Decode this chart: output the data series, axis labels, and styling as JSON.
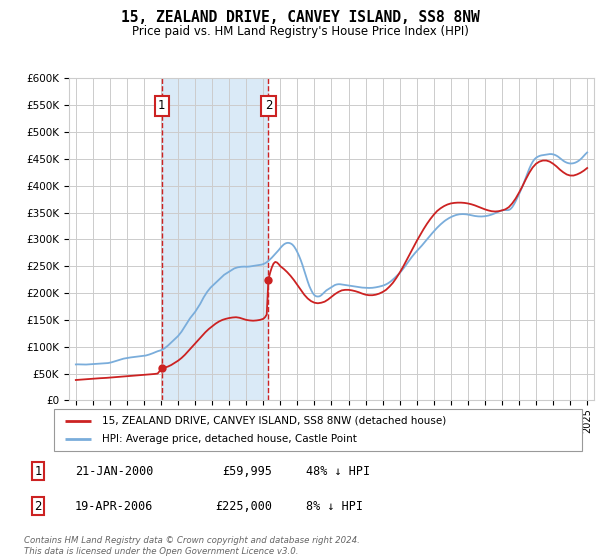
{
  "title": "15, ZEALAND DRIVE, CANVEY ISLAND, SS8 8NW",
  "subtitle": "Price paid vs. HM Land Registry's House Price Index (HPI)",
  "legend_line1": "15, ZEALAND DRIVE, CANVEY ISLAND, SS8 8NW (detached house)",
  "legend_line2": "HPI: Average price, detached house, Castle Point",
  "sale1_date": "21-JAN-2000",
  "sale1_price": "£59,995",
  "sale1_hpi": "48% ↓ HPI",
  "sale1_year": 2000.05,
  "sale1_value": 59995,
  "sale2_date": "19-APR-2006",
  "sale2_price": "£225,000",
  "sale2_hpi": "8% ↓ HPI",
  "sale2_year": 2006.3,
  "sale2_value": 225000,
  "hpi_color": "#7aaddb",
  "price_color": "#cc2222",
  "annotation_box_color": "#cc2222",
  "shaded_region_color": "#daeaf7",
  "grid_color": "#cccccc",
  "background_color": "#ffffff",
  "ylim": [
    0,
    600000
  ],
  "xlim_start": 1994.6,
  "xlim_end": 2025.4,
  "ytick_step": 50000,
  "footer": "Contains HM Land Registry data © Crown copyright and database right 2024.\nThis data is licensed under the Open Government Licence v3.0.",
  "hpi_data": [
    [
      1995.0,
      67000
    ],
    [
      1995.1,
      67200
    ],
    [
      1995.2,
      67100
    ],
    [
      1995.3,
      66900
    ],
    [
      1995.4,
      66700
    ],
    [
      1995.5,
      66600
    ],
    [
      1995.6,
      66800
    ],
    [
      1995.7,
      67000
    ],
    [
      1995.8,
      67200
    ],
    [
      1995.9,
      67400
    ],
    [
      1996.0,
      67500
    ],
    [
      1996.1,
      67600
    ],
    [
      1996.2,
      67800
    ],
    [
      1996.3,
      68000
    ],
    [
      1996.4,
      68200
    ],
    [
      1996.5,
      68400
    ],
    [
      1996.6,
      68600
    ],
    [
      1996.7,
      68900
    ],
    [
      1996.8,
      69200
    ],
    [
      1996.9,
      69600
    ],
    [
      1997.0,
      70200
    ],
    [
      1997.1,
      71000
    ],
    [
      1997.2,
      72000
    ],
    [
      1997.3,
      73100
    ],
    [
      1997.4,
      74200
    ],
    [
      1997.5,
      75200
    ],
    [
      1997.6,
      76100
    ],
    [
      1997.7,
      77000
    ],
    [
      1997.8,
      77800
    ],
    [
      1997.9,
      78400
    ],
    [
      1998.0,
      79000
    ],
    [
      1998.1,
      79500
    ],
    [
      1998.2,
      80000
    ],
    [
      1998.3,
      80400
    ],
    [
      1998.4,
      80800
    ],
    [
      1998.5,
      81200
    ],
    [
      1998.6,
      81600
    ],
    [
      1998.7,
      82000
    ],
    [
      1998.8,
      82300
    ],
    [
      1998.9,
      82600
    ],
    [
      1999.0,
      83000
    ],
    [
      1999.1,
      83600
    ],
    [
      1999.2,
      84400
    ],
    [
      1999.3,
      85400
    ],
    [
      1999.4,
      86500
    ],
    [
      1999.5,
      87700
    ],
    [
      1999.6,
      89000
    ],
    [
      1999.7,
      90300
    ],
    [
      1999.8,
      91600
    ],
    [
      1999.9,
      92500
    ],
    [
      2000.0,
      93500
    ],
    [
      2000.1,
      95000
    ],
    [
      2000.2,
      97000
    ],
    [
      2000.3,
      99500
    ],
    [
      2000.4,
      102000
    ],
    [
      2000.5,
      105000
    ],
    [
      2000.6,
      108000
    ],
    [
      2000.7,
      111000
    ],
    [
      2000.8,
      114000
    ],
    [
      2000.9,
      117000
    ],
    [
      2001.0,
      120000
    ],
    [
      2001.1,
      124000
    ],
    [
      2001.2,
      128000
    ],
    [
      2001.3,
      133000
    ],
    [
      2001.4,
      138000
    ],
    [
      2001.5,
      143000
    ],
    [
      2001.6,
      148000
    ],
    [
      2001.7,
      153000
    ],
    [
      2001.8,
      157000
    ],
    [
      2001.9,
      161000
    ],
    [
      2002.0,
      165000
    ],
    [
      2002.1,
      170000
    ],
    [
      2002.2,
      175000
    ],
    [
      2002.3,
      180000
    ],
    [
      2002.4,
      186000
    ],
    [
      2002.5,
      192000
    ],
    [
      2002.6,
      197000
    ],
    [
      2002.7,
      202000
    ],
    [
      2002.8,
      206000
    ],
    [
      2002.9,
      210000
    ],
    [
      2003.0,
      213000
    ],
    [
      2003.1,
      216000
    ],
    [
      2003.2,
      219000
    ],
    [
      2003.3,
      222000
    ],
    [
      2003.4,
      225000
    ],
    [
      2003.5,
      228000
    ],
    [
      2003.6,
      231000
    ],
    [
      2003.7,
      234000
    ],
    [
      2003.8,
      236000
    ],
    [
      2003.9,
      238000
    ],
    [
      2004.0,
      240000
    ],
    [
      2004.1,
      242000
    ],
    [
      2004.2,
      244000
    ],
    [
      2004.3,
      246000
    ],
    [
      2004.4,
      247000
    ],
    [
      2004.5,
      248000
    ],
    [
      2004.6,
      248500
    ],
    [
      2004.7,
      249000
    ],
    [
      2004.8,
      249200
    ],
    [
      2004.9,
      249300
    ],
    [
      2005.0,
      249000
    ],
    [
      2005.1,
      249200
    ],
    [
      2005.2,
      249500
    ],
    [
      2005.3,
      250000
    ],
    [
      2005.4,
      250500
    ],
    [
      2005.5,
      251000
    ],
    [
      2005.6,
      251500
    ],
    [
      2005.7,
      252000
    ],
    [
      2005.8,
      252500
    ],
    [
      2005.9,
      253000
    ],
    [
      2006.0,
      254000
    ],
    [
      2006.1,
      255500
    ],
    [
      2006.2,
      257500
    ],
    [
      2006.3,
      260000
    ],
    [
      2006.4,
      263000
    ],
    [
      2006.5,
      266000
    ],
    [
      2006.6,
      269500
    ],
    [
      2006.7,
      273000
    ],
    [
      2006.8,
      276500
    ],
    [
      2006.9,
      280000
    ],
    [
      2007.0,
      284000
    ],
    [
      2007.1,
      287500
    ],
    [
      2007.2,
      290500
    ],
    [
      2007.3,
      292500
    ],
    [
      2007.4,
      293500
    ],
    [
      2007.5,
      293500
    ],
    [
      2007.6,
      292500
    ],
    [
      2007.7,
      290500
    ],
    [
      2007.8,
      287000
    ],
    [
      2007.9,
      282000
    ],
    [
      2008.0,
      276000
    ],
    [
      2008.1,
      269000
    ],
    [
      2008.2,
      261000
    ],
    [
      2008.3,
      252000
    ],
    [
      2008.4,
      242000
    ],
    [
      2008.5,
      232000
    ],
    [
      2008.6,
      222000
    ],
    [
      2008.7,
      213000
    ],
    [
      2008.8,
      206000
    ],
    [
      2008.9,
      200000
    ],
    [
      2009.0,
      196000
    ],
    [
      2009.1,
      194000
    ],
    [
      2009.2,
      193500
    ],
    [
      2009.3,
      194000
    ],
    [
      2009.4,
      196000
    ],
    [
      2009.5,
      199000
    ],
    [
      2009.6,
      202000
    ],
    [
      2009.7,
      205000
    ],
    [
      2009.8,
      207000
    ],
    [
      2009.9,
      209000
    ],
    [
      2010.0,
      211000
    ],
    [
      2010.1,
      213000
    ],
    [
      2010.2,
      215000
    ],
    [
      2010.3,
      216000
    ],
    [
      2010.4,
      216500
    ],
    [
      2010.5,
      216500
    ],
    [
      2010.6,
      216000
    ],
    [
      2010.7,
      215500
    ],
    [
      2010.8,
      215000
    ],
    [
      2010.9,
      214500
    ],
    [
      2011.0,
      214000
    ],
    [
      2011.1,
      213500
    ],
    [
      2011.2,
      213000
    ],
    [
      2011.3,
      212500
    ],
    [
      2011.4,
      212000
    ],
    [
      2011.5,
      211500
    ],
    [
      2011.6,
      211000
    ],
    [
      2011.7,
      210500
    ],
    [
      2011.8,
      210200
    ],
    [
      2011.9,
      210000
    ],
    [
      2012.0,
      209800
    ],
    [
      2012.1,
      209600
    ],
    [
      2012.2,
      209500
    ],
    [
      2012.3,
      209600
    ],
    [
      2012.4,
      209800
    ],
    [
      2012.5,
      210200
    ],
    [
      2012.6,
      210700
    ],
    [
      2012.7,
      211300
    ],
    [
      2012.8,
      212000
    ],
    [
      2012.9,
      212800
    ],
    [
      2013.0,
      213700
    ],
    [
      2013.1,
      214800
    ],
    [
      2013.2,
      216200
    ],
    [
      2013.3,
      217900
    ],
    [
      2013.4,
      220000
    ],
    [
      2013.5,
      222400
    ],
    [
      2013.6,
      225100
    ],
    [
      2013.7,
      228000
    ],
    [
      2013.8,
      231100
    ],
    [
      2013.9,
      234200
    ],
    [
      2014.0,
      237400
    ],
    [
      2014.1,
      241000
    ],
    [
      2014.2,
      245000
    ],
    [
      2014.3,
      249300
    ],
    [
      2014.4,
      253700
    ],
    [
      2014.5,
      258200
    ],
    [
      2014.6,
      262600
    ],
    [
      2014.7,
      266800
    ],
    [
      2014.8,
      270800
    ],
    [
      2014.9,
      274600
    ],
    [
      2015.0,
      278200
    ],
    [
      2015.1,
      281600
    ],
    [
      2015.2,
      285000
    ],
    [
      2015.3,
      288500
    ],
    [
      2015.4,
      292200
    ],
    [
      2015.5,
      296000
    ],
    [
      2015.6,
      299900
    ],
    [
      2015.7,
      303800
    ],
    [
      2015.8,
      307600
    ],
    [
      2015.9,
      311300
    ],
    [
      2016.0,
      314900
    ],
    [
      2016.1,
      318400
    ],
    [
      2016.2,
      321800
    ],
    [
      2016.3,
      325000
    ],
    [
      2016.4,
      328000
    ],
    [
      2016.5,
      330800
    ],
    [
      2016.6,
      333400
    ],
    [
      2016.7,
      335800
    ],
    [
      2016.8,
      337900
    ],
    [
      2016.9,
      339800
    ],
    [
      2017.0,
      341500
    ],
    [
      2017.1,
      343000
    ],
    [
      2017.2,
      344300
    ],
    [
      2017.3,
      345400
    ],
    [
      2017.4,
      346200
    ],
    [
      2017.5,
      346800
    ],
    [
      2017.6,
      347100
    ],
    [
      2017.7,
      347200
    ],
    [
      2017.8,
      347100
    ],
    [
      2017.9,
      346800
    ],
    [
      2018.0,
      346300
    ],
    [
      2018.1,
      345700
    ],
    [
      2018.2,
      345000
    ],
    [
      2018.3,
      344300
    ],
    [
      2018.4,
      343700
    ],
    [
      2018.5,
      343200
    ],
    [
      2018.6,
      342900
    ],
    [
      2018.7,
      342700
    ],
    [
      2018.8,
      342700
    ],
    [
      2018.9,
      342900
    ],
    [
      2019.0,
      343200
    ],
    [
      2019.1,
      343700
    ],
    [
      2019.2,
      344400
    ],
    [
      2019.3,
      345300
    ],
    [
      2019.4,
      346300
    ],
    [
      2019.5,
      347500
    ],
    [
      2019.6,
      348800
    ],
    [
      2019.7,
      350200
    ],
    [
      2019.8,
      351600
    ],
    [
      2019.9,
      352900
    ],
    [
      2020.0,
      354000
    ],
    [
      2020.1,
      354700
    ],
    [
      2020.2,
      354800
    ],
    [
      2020.3,
      354500
    ],
    [
      2020.4,
      354800
    ],
    [
      2020.5,
      356500
    ],
    [
      2020.6,
      360000
    ],
    [
      2020.7,
      365000
    ],
    [
      2020.8,
      371000
    ],
    [
      2020.9,
      377500
    ],
    [
      2021.0,
      384000
    ],
    [
      2021.1,
      391000
    ],
    [
      2021.2,
      398500
    ],
    [
      2021.3,
      406500
    ],
    [
      2021.4,
      415000
    ],
    [
      2021.5,
      423500
    ],
    [
      2021.6,
      431500
    ],
    [
      2021.7,
      438500
    ],
    [
      2021.8,
      444500
    ],
    [
      2021.9,
      449000
    ],
    [
      2022.0,
      452000
    ],
    [
      2022.1,
      454000
    ],
    [
      2022.2,
      455500
    ],
    [
      2022.3,
      456500
    ],
    [
      2022.4,
      457000
    ],
    [
      2022.5,
      457500
    ],
    [
      2022.6,
      458000
    ],
    [
      2022.7,
      458500
    ],
    [
      2022.8,
      459000
    ],
    [
      2022.9,
      459000
    ],
    [
      2023.0,
      458500
    ],
    [
      2023.1,
      457500
    ],
    [
      2023.2,
      456000
    ],
    [
      2023.3,
      454000
    ],
    [
      2023.4,
      451500
    ],
    [
      2023.5,
      449000
    ],
    [
      2023.6,
      446500
    ],
    [
      2023.7,
      444500
    ],
    [
      2023.8,
      443000
    ],
    [
      2023.9,
      442000
    ],
    [
      2024.0,
      441500
    ],
    [
      2024.1,
      441500
    ],
    [
      2024.2,
      442000
    ],
    [
      2024.3,
      443000
    ],
    [
      2024.4,
      444500
    ],
    [
      2024.5,
      446500
    ],
    [
      2024.6,
      449000
    ],
    [
      2024.7,
      452000
    ],
    [
      2024.8,
      455500
    ],
    [
      2024.9,
      459000
    ],
    [
      2025.0,
      462000
    ]
  ],
  "price_paid_data": [
    [
      1995.0,
      38000
    ],
    [
      1995.2,
      38500
    ],
    [
      1995.4,
      39000
    ],
    [
      1995.6,
      39500
    ],
    [
      1995.8,
      40000
    ],
    [
      1996.0,
      40500
    ],
    [
      1996.2,
      41000
    ],
    [
      1996.4,
      41300
    ],
    [
      1996.6,
      41600
    ],
    [
      1996.8,
      42000
    ],
    [
      1997.0,
      42500
    ],
    [
      1997.2,
      43000
    ],
    [
      1997.4,
      43500
    ],
    [
      1997.6,
      44000
    ],
    [
      1997.8,
      44500
    ],
    [
      1998.0,
      45000
    ],
    [
      1998.2,
      45500
    ],
    [
      1998.4,
      46000
    ],
    [
      1998.6,
      46500
    ],
    [
      1998.8,
      47000
    ],
    [
      1999.0,
      47500
    ],
    [
      1999.2,
      48000
    ],
    [
      1999.4,
      48500
    ],
    [
      1999.6,
      49200
    ],
    [
      1999.8,
      50000
    ],
    [
      2000.05,
      59995
    ],
    [
      2000.2,
      61000
    ],
    [
      2000.4,
      63000
    ],
    [
      2000.6,
      66000
    ],
    [
      2000.8,
      70000
    ],
    [
      2001.0,
      74000
    ],
    [
      2001.2,
      79000
    ],
    [
      2001.4,
      85000
    ],
    [
      2001.6,
      92000
    ],
    [
      2001.8,
      99000
    ],
    [
      2002.0,
      106000
    ],
    [
      2002.2,
      113000
    ],
    [
      2002.4,
      120000
    ],
    [
      2002.6,
      127000
    ],
    [
      2002.8,
      133000
    ],
    [
      2003.0,
      138000
    ],
    [
      2003.2,
      143000
    ],
    [
      2003.4,
      147000
    ],
    [
      2003.6,
      150000
    ],
    [
      2003.8,
      152000
    ],
    [
      2004.0,
      153500
    ],
    [
      2004.2,
      154500
    ],
    [
      2004.4,
      155000
    ],
    [
      2004.6,
      154000
    ],
    [
      2004.8,
      152000
    ],
    [
      2005.0,
      150000
    ],
    [
      2005.2,
      149000
    ],
    [
      2005.4,
      148500
    ],
    [
      2005.6,
      149000
    ],
    [
      2005.8,
      150000
    ],
    [
      2006.0,
      152000
    ],
    [
      2006.1,
      155000
    ],
    [
      2006.2,
      160000
    ],
    [
      2006.3,
      225000
    ],
    [
      2006.4,
      238000
    ],
    [
      2006.5,
      248000
    ],
    [
      2006.6,
      255000
    ],
    [
      2006.7,
      258000
    ],
    [
      2006.8,
      257000
    ],
    [
      2006.9,
      254000
    ],
    [
      2007.0,
      250000
    ],
    [
      2007.2,
      245000
    ],
    [
      2007.4,
      239000
    ],
    [
      2007.6,
      232000
    ],
    [
      2007.8,
      224000
    ],
    [
      2008.0,
      215000
    ],
    [
      2008.2,
      206000
    ],
    [
      2008.4,
      197000
    ],
    [
      2008.6,
      190000
    ],
    [
      2008.8,
      185000
    ],
    [
      2009.0,
      182000
    ],
    [
      2009.2,
      181000
    ],
    [
      2009.4,
      182000
    ],
    [
      2009.6,
      184000
    ],
    [
      2009.8,
      188000
    ],
    [
      2010.0,
      193000
    ],
    [
      2010.2,
      198000
    ],
    [
      2010.4,
      202000
    ],
    [
      2010.6,
      205000
    ],
    [
      2010.8,
      206000
    ],
    [
      2011.0,
      206000
    ],
    [
      2011.2,
      205000
    ],
    [
      2011.4,
      203500
    ],
    [
      2011.6,
      201500
    ],
    [
      2011.8,
      199000
    ],
    [
      2012.0,
      197000
    ],
    [
      2012.2,
      196000
    ],
    [
      2012.4,
      196000
    ],
    [
      2012.6,
      197000
    ],
    [
      2012.8,
      199000
    ],
    [
      2013.0,
      202000
    ],
    [
      2013.2,
      206000
    ],
    [
      2013.4,
      212000
    ],
    [
      2013.6,
      219000
    ],
    [
      2013.8,
      228000
    ],
    [
      2014.0,
      238000
    ],
    [
      2014.2,
      249000
    ],
    [
      2014.4,
      261000
    ],
    [
      2014.6,
      273000
    ],
    [
      2014.8,
      285000
    ],
    [
      2015.0,
      297000
    ],
    [
      2015.2,
      308000
    ],
    [
      2015.4,
      319000
    ],
    [
      2015.6,
      329000
    ],
    [
      2015.8,
      338000
    ],
    [
      2016.0,
      346000
    ],
    [
      2016.2,
      353000
    ],
    [
      2016.4,
      358000
    ],
    [
      2016.6,
      362000
    ],
    [
      2016.8,
      365000
    ],
    [
      2017.0,
      367000
    ],
    [
      2017.2,
      368000
    ],
    [
      2017.4,
      368500
    ],
    [
      2017.6,
      368500
    ],
    [
      2017.8,
      368000
    ],
    [
      2018.0,
      367000
    ],
    [
      2018.2,
      365500
    ],
    [
      2018.4,
      363500
    ],
    [
      2018.6,
      361000
    ],
    [
      2018.8,
      358500
    ],
    [
      2019.0,
      356000
    ],
    [
      2019.2,
      354000
    ],
    [
      2019.4,
      352500
    ],
    [
      2019.6,
      352000
    ],
    [
      2019.8,
      352500
    ],
    [
      2020.0,
      354000
    ],
    [
      2020.2,
      356000
    ],
    [
      2020.4,
      360000
    ],
    [
      2020.6,
      367000
    ],
    [
      2020.8,
      376000
    ],
    [
      2021.0,
      387000
    ],
    [
      2021.2,
      399000
    ],
    [
      2021.4,
      412000
    ],
    [
      2021.6,
      424000
    ],
    [
      2021.8,
      434000
    ],
    [
      2022.0,
      441000
    ],
    [
      2022.2,
      445000
    ],
    [
      2022.4,
      447000
    ],
    [
      2022.6,
      447000
    ],
    [
      2022.8,
      445000
    ],
    [
      2023.0,
      441000
    ],
    [
      2023.2,
      436000
    ],
    [
      2023.4,
      430000
    ],
    [
      2023.6,
      425000
    ],
    [
      2023.8,
      421000
    ],
    [
      2024.0,
      419000
    ],
    [
      2024.2,
      419000
    ],
    [
      2024.4,
      421000
    ],
    [
      2024.6,
      424000
    ],
    [
      2024.8,
      428000
    ],
    [
      2025.0,
      433000
    ]
  ]
}
